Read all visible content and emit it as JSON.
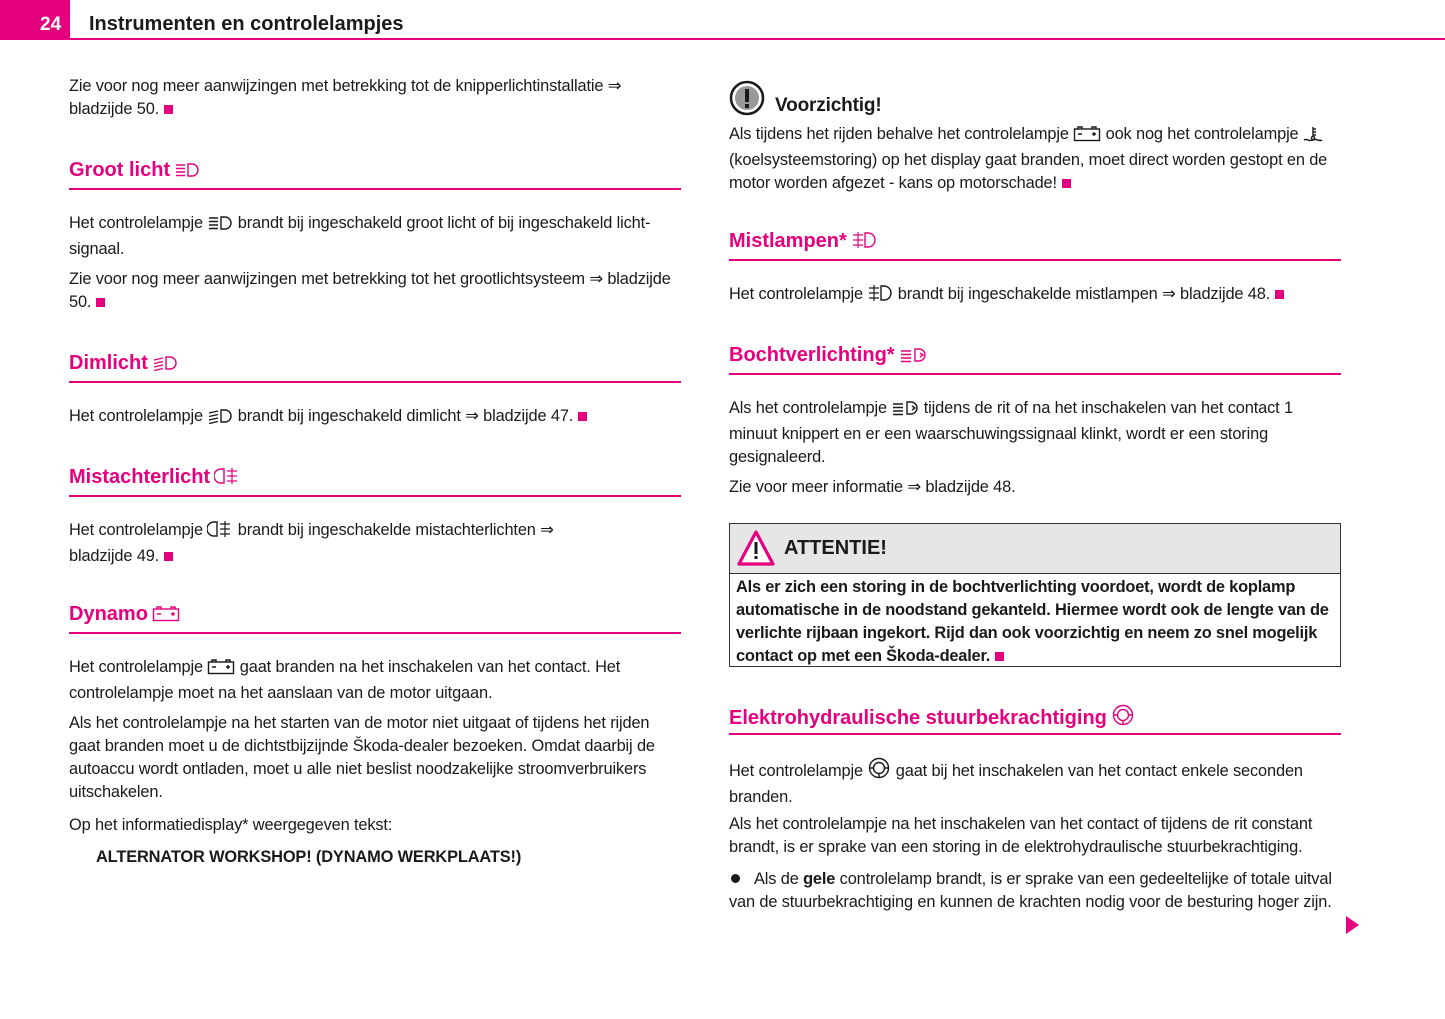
{
  "header": {
    "page_number": "24",
    "title": "Instrumenten en controlelampjes"
  },
  "colors": {
    "accent": "#e5007e"
  },
  "left": {
    "intro": {
      "text": "Zie voor nog meer aanwijzingen met betrekking tot de knipperlichtinstallatie ⇒ bladzijde 50."
    },
    "groot_licht": {
      "heading": "Groot licht",
      "icon": "high-beam-icon",
      "p1a": "Het controlelampje ",
      "p1b": " brandt bij ingeschakeld groot licht of bij ingeschakeld licht-signaal.",
      "p2": "Zie voor nog meer aanwijzingen met betrekking tot het grootlichtsysteem ⇒ bladzijde 50."
    },
    "dimlicht": {
      "heading": "Dimlicht",
      "icon": "low-beam-icon",
      "p1a": "Het controlelampje ",
      "p1b": " brandt bij ingeschakeld dimlicht ⇒ bladzijde 47."
    },
    "mistachterlicht": {
      "heading": "Mistachterlicht",
      "icon": "rear-fog-icon",
      "p1a": "Het controlelampje ",
      "p1b": " brandt bij ingeschakelde mistachterlichten ⇒ bladzijde 49."
    },
    "dynamo": {
      "heading": "Dynamo",
      "icon": "battery-icon",
      "p1a": "Het controlelampje ",
      "p1b": " gaat branden na het inschakelen van het contact. Het controlelampje moet na het aanslaan van de motor uitgaan.",
      "p2": "Als het controlelampje na het starten van de motor niet uitgaat of tijdens het rijden gaat branden moet u de dichtstbijzijnde Škoda-dealer bezoeken. Omdat daarbij de autoaccu wordt ontladen, moet u alle niet beslist noodzakelijke stroomverbruikers uitschakelen.",
      "p3": "Op het informatiedisplay* weergegeven tekst:",
      "display_text": "ALTERNATOR WORKSHOP! (DYNAMO WERKPLAATS!)"
    }
  },
  "right": {
    "caution": {
      "heading": "Voorzichtig!",
      "icon": "caution-icon",
      "pa": "Als tijdens het rijden behalve het controlelampje ",
      "pb": " ook nog het controlelampje ",
      "pc": " (koelsysteemstoring) op het display gaat branden, moet direct worden gestopt en de motor worden afgezet - kans op motorschade!"
    },
    "mistlampen": {
      "heading": "Mistlampen*",
      "icon": "fog-light-icon",
      "p1a": "Het controlelampje ",
      "p1b": " brandt bij ingeschakelde mistlampen ⇒ bladzijde 48."
    },
    "bochtverlichting": {
      "heading": "Bochtverlichting*",
      "icon": "cornering-light-icon",
      "p1a": "Als het controlelampje ",
      "p1b": " tijdens de rit of na het inschakelen van het contact 1 minuut knippert en er een waarschuwingssignaal klinkt, wordt er een storing gesignaleerd.",
      "p2": "Zie voor meer informatie ⇒ bladzijde 48."
    },
    "attentie": {
      "heading": "ATTENTIE!",
      "icon": "warning-triangle-icon",
      "text": "Als er zich een storing in de bochtverlichting voordoet, wordt de koplamp automatische in de noodstand gekanteld. Hiermee wordt ook de lengte van de verlichte rijbaan ingekort. Rijd dan ook voorzichtig en neem zo snel mogelijk contact op met een Škoda-dealer."
    },
    "stuur": {
      "heading": "Elektrohydraulische stuurbekrachtiging",
      "icon": "power-steering-icon",
      "p1a": "Het controlelampje ",
      "p1b": " gaat bij het inschakelen van het contact enkele seconden branden.",
      "p2": "Als het controlelampje na het inschakelen van het contact of tijdens de rit constant brandt, is er sprake van een storing in de elektrohydraulische stuurbekrachtiging.",
      "b1a": "Als de ",
      "b1bold": "gele",
      "b1b": " controlelamp brandt, is er sprake van een gedeeltelijke of totale uitval van de stuurbekrachtiging en kunnen de krachten nodig voor de besturing hoger zijn."
    }
  }
}
